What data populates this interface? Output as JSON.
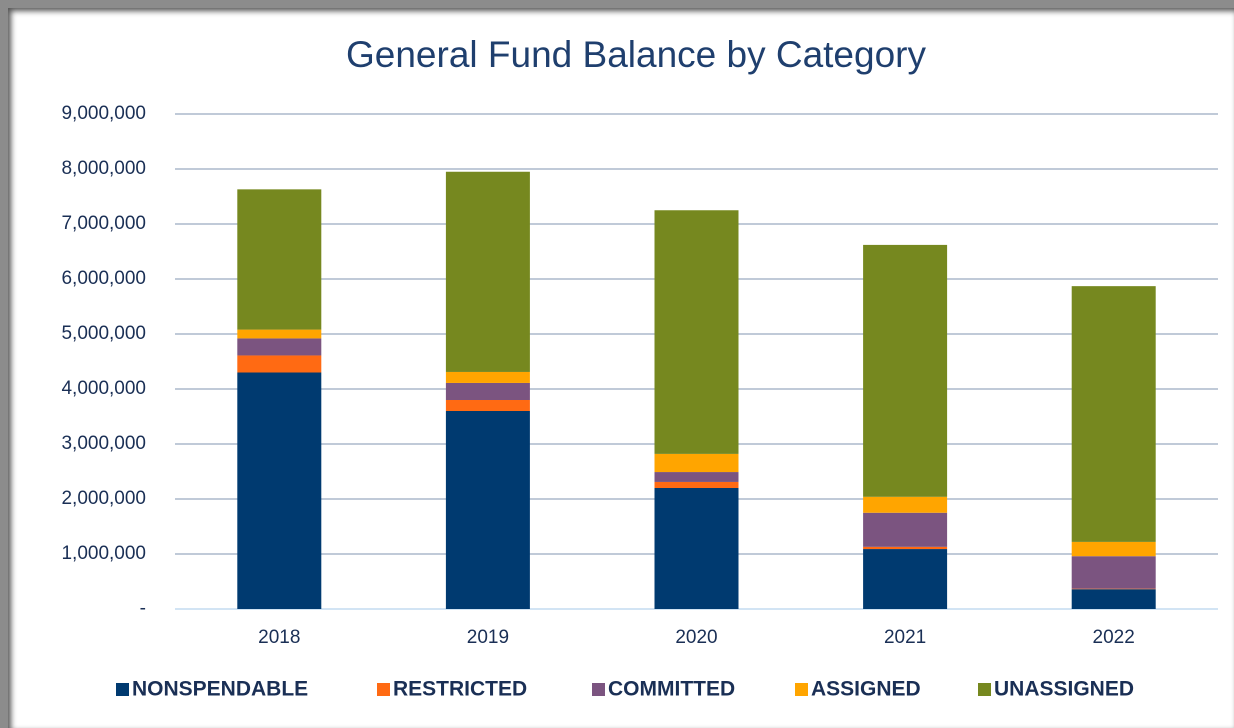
{
  "chart_data": {
    "type": "stacked_bar",
    "title": "General Fund Balance by Category",
    "categories": [
      "2018",
      "2019",
      "2020",
      "2021",
      "2022"
    ],
    "series": [
      {
        "name": "NONSPENDABLE",
        "color": "#003a70",
        "values": [
          4300000,
          3600000,
          2200000,
          1090000,
          360000
        ]
      },
      {
        "name": "RESTRICTED",
        "color": "#ff6a13",
        "values": [
          310000,
          200000,
          110000,
          40000,
          10000
        ]
      },
      {
        "name": "COMMITTED",
        "color": "#7b5480",
        "values": [
          310000,
          310000,
          180000,
          620000,
          590000
        ]
      },
      {
        "name": "ASSIGNED",
        "color": "#ffa500",
        "values": [
          160000,
          200000,
          330000,
          290000,
          260000
        ]
      },
      {
        "name": "UNASSIGNED",
        "color": "#76881f",
        "values": [
          2550000,
          3640000,
          4430000,
          4580000,
          4650000
        ]
      }
    ],
    "ylim": [
      0,
      9000000
    ],
    "yticks": [
      {
        "value": 0,
        "label": "-"
      },
      {
        "value": 1000000,
        "label": "1,000,000"
      },
      {
        "value": 2000000,
        "label": "2,000,000"
      },
      {
        "value": 3000000,
        "label": "3,000,000"
      },
      {
        "value": 4000000,
        "label": "4,000,000"
      },
      {
        "value": 5000000,
        "label": "5,000,000"
      },
      {
        "value": 6000000,
        "label": "6,000,000"
      },
      {
        "value": 7000000,
        "label": "7,000,000"
      },
      {
        "value": 8000000,
        "label": "8,000,000"
      },
      {
        "value": 9000000,
        "label": "9,000,000"
      }
    ],
    "grid": true,
    "legend": "bottom"
  }
}
